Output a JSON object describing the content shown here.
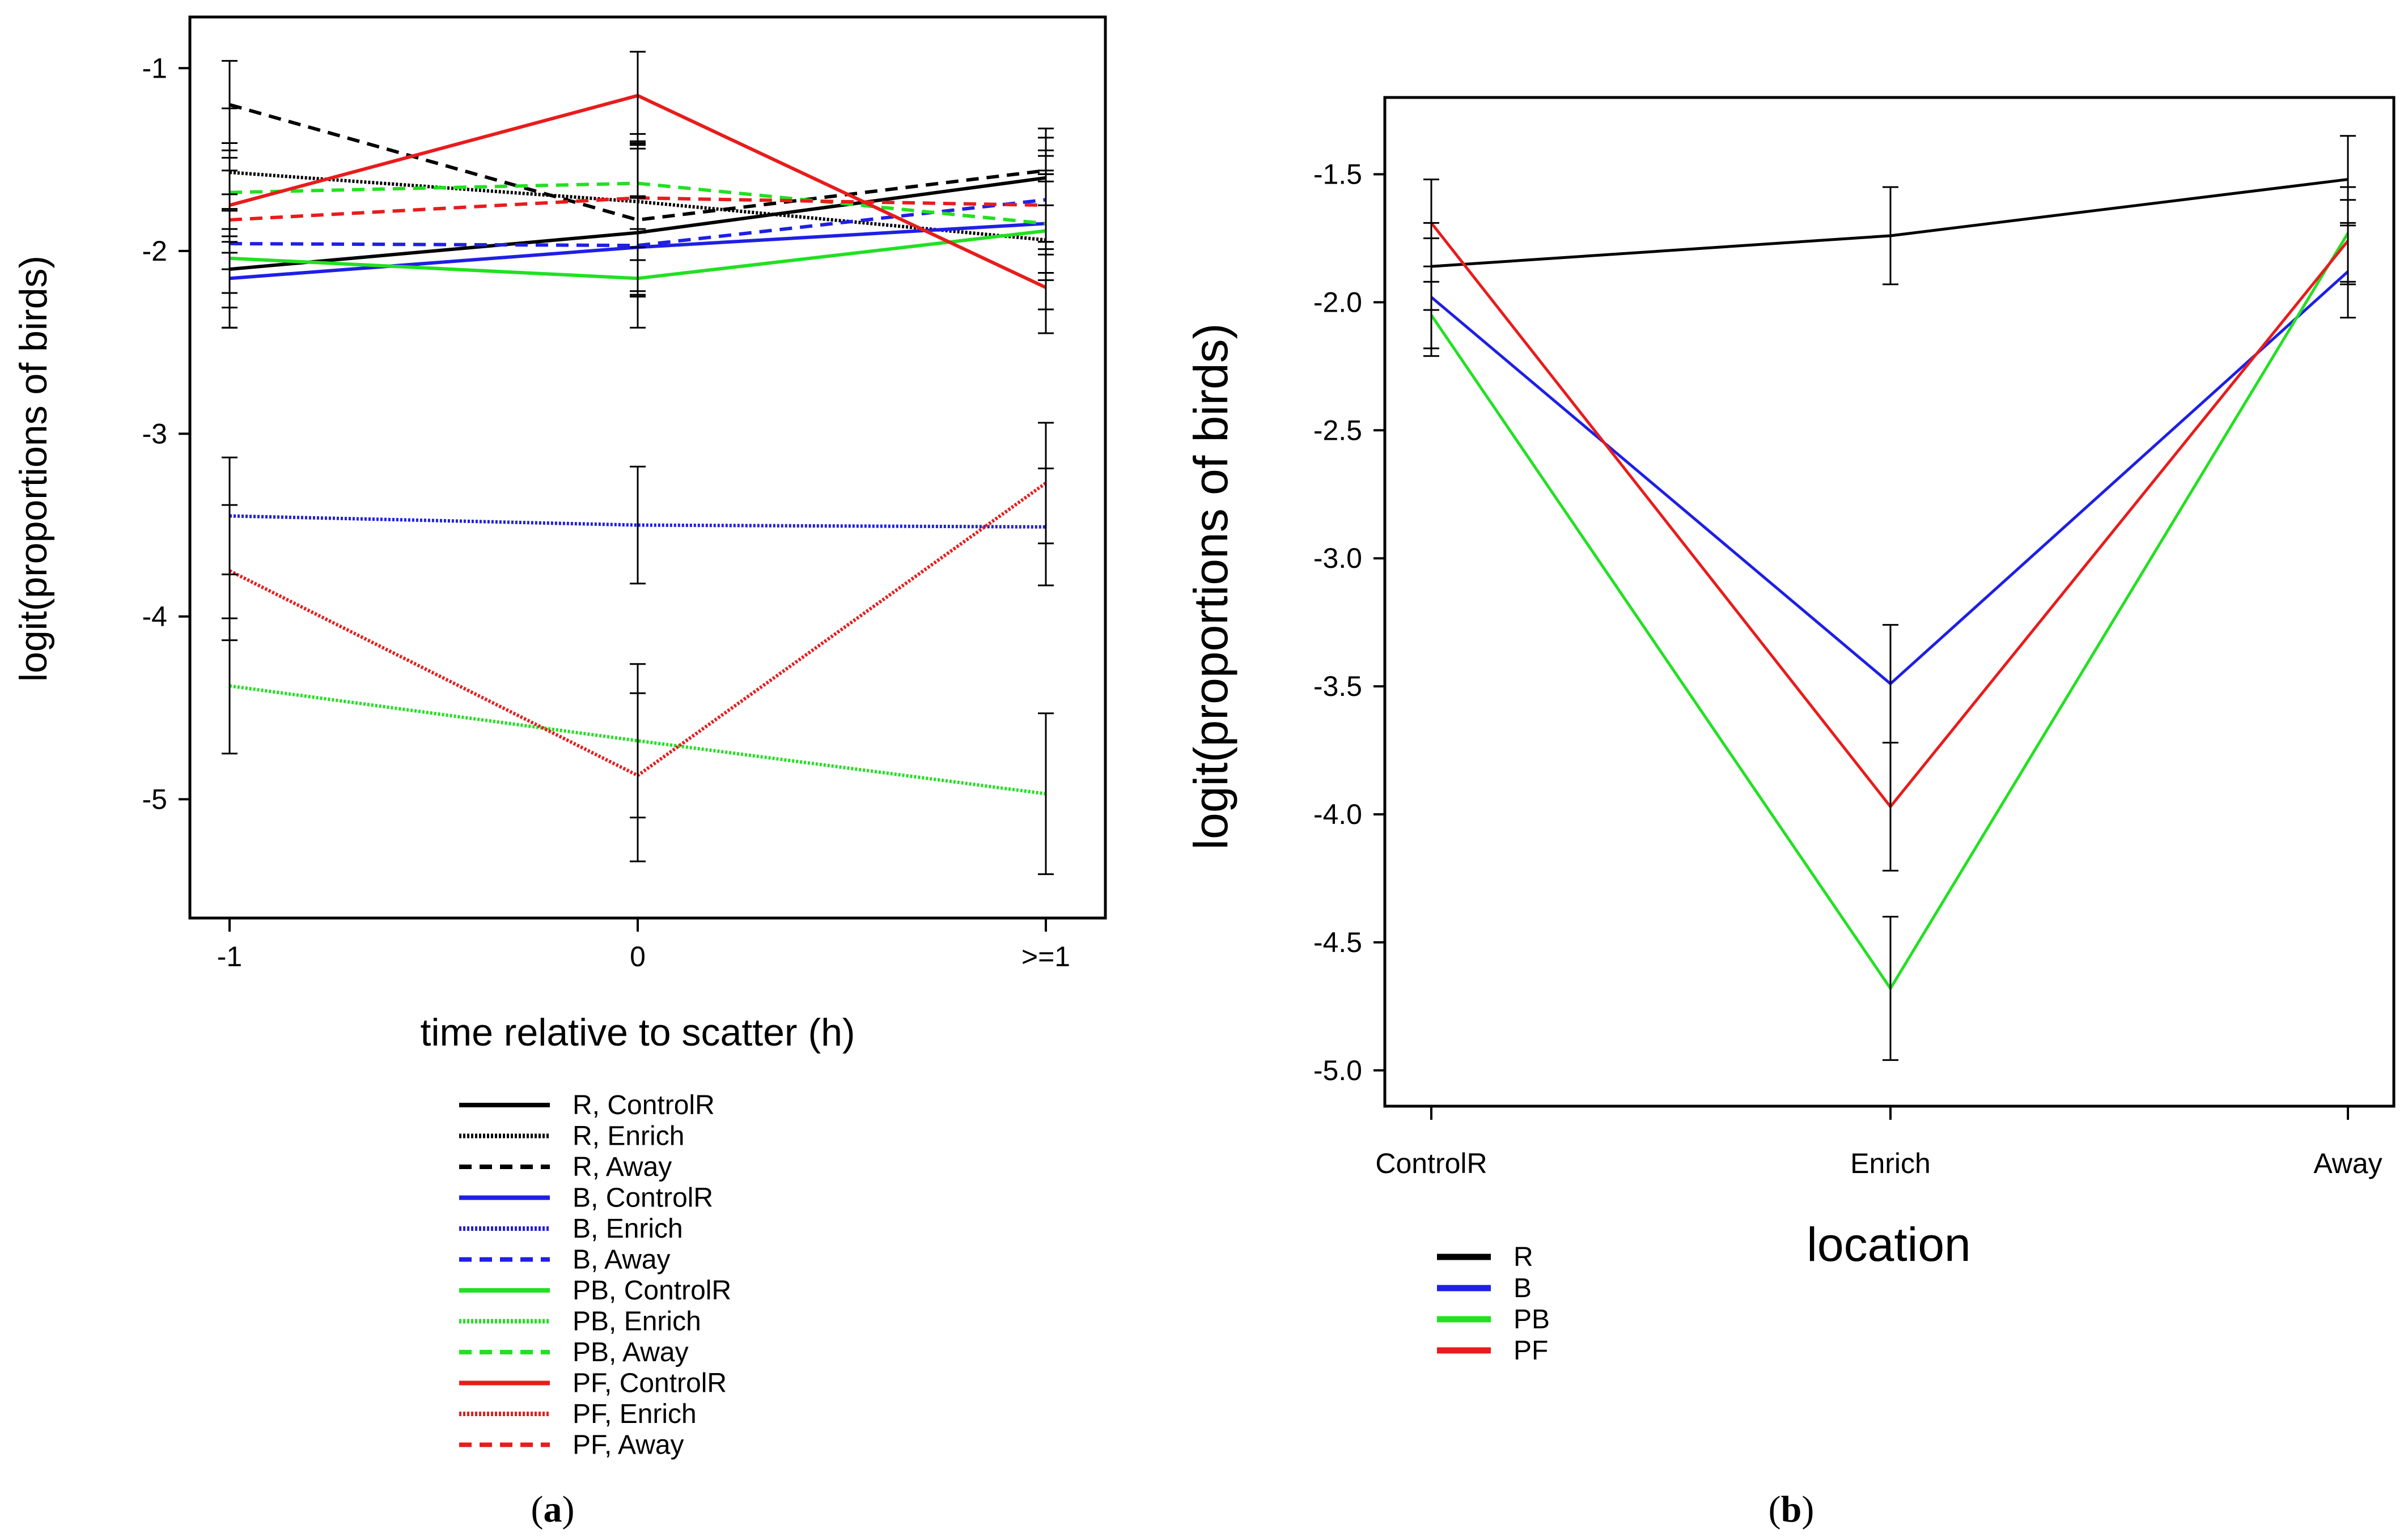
{
  "chart_data": [
    {
      "panel": "(a)",
      "panel_letter": "a",
      "type": "line",
      "title": "",
      "xlabel": "time relative to scatter (h)",
      "ylabel": "logit(proportions of birds)",
      "categories": [
        "-1",
        "0",
        ">=1"
      ],
      "ylim": [
        -5.65,
        -0.72
      ],
      "yticks": [
        -1,
        -2,
        -3,
        -4,
        -5
      ],
      "ytick_labels": [
        "-1",
        "-2",
        "-3",
        "-4",
        "-5"
      ],
      "grid": false,
      "legend_position": "bottom",
      "colors": {
        "R": "#000000",
        "B": "#1f1fe6",
        "PB": "#22e022",
        "PF": "#e81c1c"
      },
      "series": [
        {
          "name": "R, ControlR",
          "group": "R",
          "style": "solid",
          "values": [
            -2.1,
            -1.9,
            -1.6
          ],
          "err": [
            [
              -2.42,
              -1.78
            ],
            [
              -2.22,
              -1.42
            ],
            [
              -1.95,
              -1.33
            ]
          ]
        },
        {
          "name": "R, Enrich",
          "group": "R",
          "style": "dotted",
          "values": [
            -1.57,
            -1.73,
            -1.94
          ],
          "err": [
            [
              -1.92,
              -1.22
            ],
            [
              -2.05,
              -1.41
            ],
            [
              -2.32,
              -1.56
            ]
          ]
        },
        {
          "name": "R, Away",
          "group": "R",
          "style": "dashed",
          "values": [
            -1.2,
            -1.83,
            -1.56
          ],
          "err": [
            [
              -1.45,
              -0.96
            ],
            [
              -2.24,
              -1.42
            ],
            [
              -1.75,
              -1.38
            ]
          ]
        },
        {
          "name": "B, ControlR",
          "group": "B",
          "style": "solid",
          "values": [
            -2.15,
            -1.98,
            -1.85
          ],
          "err": [
            [
              -2.42,
              -1.88
            ],
            [
              -2.25,
              -1.71
            ],
            [
              -2.12,
              -1.58
            ]
          ]
        },
        {
          "name": "B, Enrich",
          "group": "B",
          "style": "dotted",
          "values": [
            -3.45,
            -3.5,
            -3.51
          ],
          "err": [
            [
              -3.77,
              -3.13
            ],
            [
              -3.82,
              -3.18
            ],
            [
              -3.83,
              -3.19
            ]
          ]
        },
        {
          "name": "B, Away",
          "group": "B",
          "style": "dashed",
          "values": [
            -1.96,
            -1.97,
            -1.72
          ],
          "err": [
            [
              -2.23,
              -1.69
            ],
            [
              -2.24,
              -1.7
            ],
            [
              -1.99,
              -1.45
            ]
          ]
        },
        {
          "name": "PB, ControlR",
          "group": "PB",
          "style": "solid",
          "values": [
            -2.04,
            -2.15,
            -1.89
          ],
          "err": [
            [
              -2.31,
              -1.77
            ],
            [
              -2.42,
              -1.88
            ],
            [
              -2.16,
              -1.62
            ]
          ]
        },
        {
          "name": "PB, Enrich",
          "group": "PB",
          "style": "dotted",
          "values": [
            -4.38,
            -4.68,
            -4.97
          ],
          "err": [
            [
              -4.75,
              -4.01
            ],
            [
              -5.1,
              -4.26
            ],
            [
              -5.41,
              -4.53
            ]
          ]
        },
        {
          "name": "PB, Away",
          "group": "PB",
          "style": "dashed",
          "values": [
            -1.68,
            -1.63,
            -1.85
          ],
          "err": [
            [
              -1.95,
              -1.41
            ],
            [
              -1.9,
              -1.36
            ],
            [
              -2.12,
              -1.58
            ]
          ]
        },
        {
          "name": "PF, ControlR",
          "group": "PF",
          "style": "solid",
          "values": [
            -1.75,
            -1.15,
            -2.2
          ],
          "err": [
            [
              -2.01,
              -1.49
            ],
            [
              -1.4,
              -0.91
            ],
            [
              -2.45,
              -1.95
            ]
          ]
        },
        {
          "name": "PF, Enrich",
          "group": "PF",
          "style": "dotted",
          "values": [
            -3.75,
            -4.87,
            -3.27
          ],
          "err": [
            [
              -4.13,
              -3.39
            ],
            [
              -5.34,
              -4.42
            ],
            [
              -3.6,
              -2.94
            ]
          ]
        },
        {
          "name": "PF, Away",
          "group": "PF",
          "style": "dashed",
          "values": [
            -1.83,
            -1.71,
            -1.75
          ],
          "err": [
            [
              -2.1,
              -1.56
            ],
            [
              -1.98,
              -1.44
            ],
            [
              -2.02,
              -1.48
            ]
          ]
        }
      ]
    },
    {
      "panel": "(b)",
      "panel_letter": "b",
      "type": "line",
      "title": "",
      "xlabel": "location",
      "ylabel": "logit(proportions of birds)",
      "categories": [
        "ControlR",
        "Enrich",
        "Away"
      ],
      "ylim": [
        -5.14,
        -1.2
      ],
      "yticks": [
        -1.5,
        -2.0,
        -2.5,
        -3.0,
        -3.5,
        -4.0,
        -4.5,
        -5.0
      ],
      "ytick_labels": [
        "-1.5",
        "-2.0",
        "-2.5",
        "-3.0",
        "-3.5",
        "-4.0",
        "-4.5",
        "-5.0"
      ],
      "grid": false,
      "legend_position": "bottom-left",
      "colors": {
        "R": "#000000",
        "B": "#1f1fe6",
        "PB": "#22e022",
        "PF": "#e81c1c"
      },
      "series": [
        {
          "name": "R",
          "group": "R",
          "style": "solid",
          "values": [
            -1.86,
            -1.74,
            -1.52
          ],
          "err": [
            [
              -2.03,
              -1.69
            ],
            [
              -1.93,
              -1.55
            ],
            [
              -1.69,
              -1.35
            ]
          ]
        },
        {
          "name": "B",
          "group": "B",
          "style": "solid",
          "values": [
            -1.98,
            -3.49,
            -1.88
          ],
          "err": [
            [
              -2.21,
              -1.75
            ],
            [
              -3.72,
              -3.26
            ],
            [
              -2.06,
              -1.7
            ]
          ]
        },
        {
          "name": "PB",
          "group": "PB",
          "style": "solid",
          "values": [
            -2.05,
            -4.68,
            -1.73
          ],
          "err": [
            [
              -2.18,
              -1.92
            ],
            [
              -4.96,
              -4.4
            ],
            [
              -1.93,
              -1.55
            ]
          ]
        },
        {
          "name": "PF",
          "group": "PF",
          "style": "solid",
          "values": [
            -1.69,
            -3.97,
            -1.76
          ],
          "err": [
            [
              -1.86,
              -1.52
            ],
            [
              -4.22,
              -3.72
            ],
            [
              -1.92,
              -1.6
            ]
          ]
        }
      ]
    }
  ]
}
